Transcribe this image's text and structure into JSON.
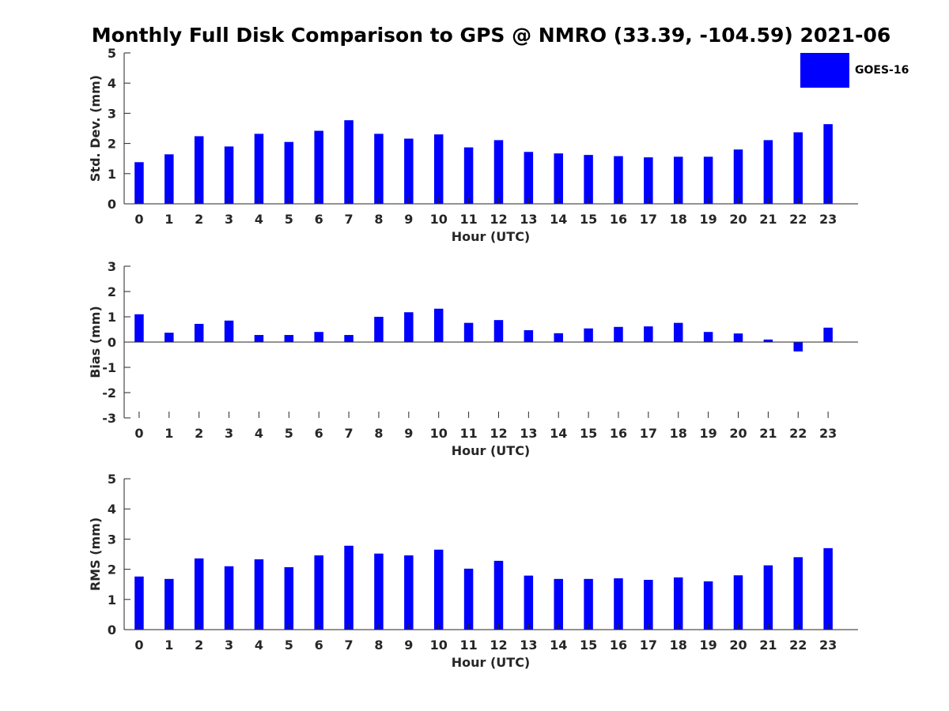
{
  "title": "Monthly Full Disk Comparison to GPS @ NMRO (33.39, -104.59) 2021-06",
  "legend": {
    "label": "GOES-16",
    "color": "#0000ff"
  },
  "chart_data": [
    {
      "type": "bar",
      "title": "Monthly Full Disk Comparison to GPS @ NMRO (33.39, -104.59) 2021-06",
      "xlabel": "Hour (UTC)",
      "ylabel": "Std. Dev. (mm)",
      "ylim": [
        0,
        5
      ],
      "yticks": [
        0,
        1,
        2,
        3,
        4,
        5
      ],
      "categories": [
        "0",
        "1",
        "2",
        "3",
        "4",
        "5",
        "6",
        "7",
        "8",
        "9",
        "10",
        "11",
        "12",
        "13",
        "14",
        "15",
        "16",
        "17",
        "18",
        "19",
        "20",
        "21",
        "22",
        "23"
      ],
      "series": [
        {
          "name": "GOES-16",
          "color": "#0000ff",
          "values": [
            1.38,
            1.64,
            2.24,
            1.9,
            2.32,
            2.05,
            2.42,
            2.77,
            2.32,
            2.16,
            2.3,
            1.87,
            2.11,
            1.72,
            1.67,
            1.62,
            1.58,
            1.54,
            1.56,
            1.56,
            1.8,
            2.11,
            2.37,
            2.64
          ]
        }
      ]
    },
    {
      "type": "bar",
      "xlabel": "Hour (UTC)",
      "ylabel": "Bias (mm)",
      "ylim": [
        -3,
        3
      ],
      "yticks": [
        -3,
        -2,
        -1,
        0,
        1,
        2,
        3
      ],
      "categories": [
        "0",
        "1",
        "2",
        "3",
        "4",
        "5",
        "6",
        "7",
        "8",
        "9",
        "10",
        "11",
        "12",
        "13",
        "14",
        "15",
        "16",
        "17",
        "18",
        "19",
        "20",
        "21",
        "22",
        "23"
      ],
      "series": [
        {
          "name": "GOES-16",
          "color": "#0000ff",
          "values": [
            1.1,
            0.37,
            0.72,
            0.85,
            0.28,
            0.28,
            0.4,
            0.28,
            1.0,
            1.18,
            1.32,
            0.76,
            0.87,
            0.47,
            0.35,
            0.54,
            0.6,
            0.62,
            0.76,
            0.4,
            0.34,
            0.1,
            -0.37,
            0.57
          ]
        }
      ]
    },
    {
      "type": "bar",
      "xlabel": "Hour (UTC)",
      "ylabel": "RMS (mm)",
      "ylim": [
        0,
        5
      ],
      "yticks": [
        0,
        1,
        2,
        3,
        4,
        5
      ],
      "categories": [
        "0",
        "1",
        "2",
        "3",
        "4",
        "5",
        "6",
        "7",
        "8",
        "9",
        "10",
        "11",
        "12",
        "13",
        "14",
        "15",
        "16",
        "17",
        "18",
        "19",
        "20",
        "21",
        "22",
        "23"
      ],
      "series": [
        {
          "name": "GOES-16",
          "color": "#0000ff",
          "values": [
            1.76,
            1.68,
            2.36,
            2.1,
            2.33,
            2.07,
            2.46,
            2.78,
            2.52,
            2.46,
            2.65,
            2.02,
            2.28,
            1.79,
            1.68,
            1.68,
            1.7,
            1.65,
            1.73,
            1.6,
            1.8,
            2.13,
            2.4,
            2.7
          ]
        }
      ]
    }
  ]
}
